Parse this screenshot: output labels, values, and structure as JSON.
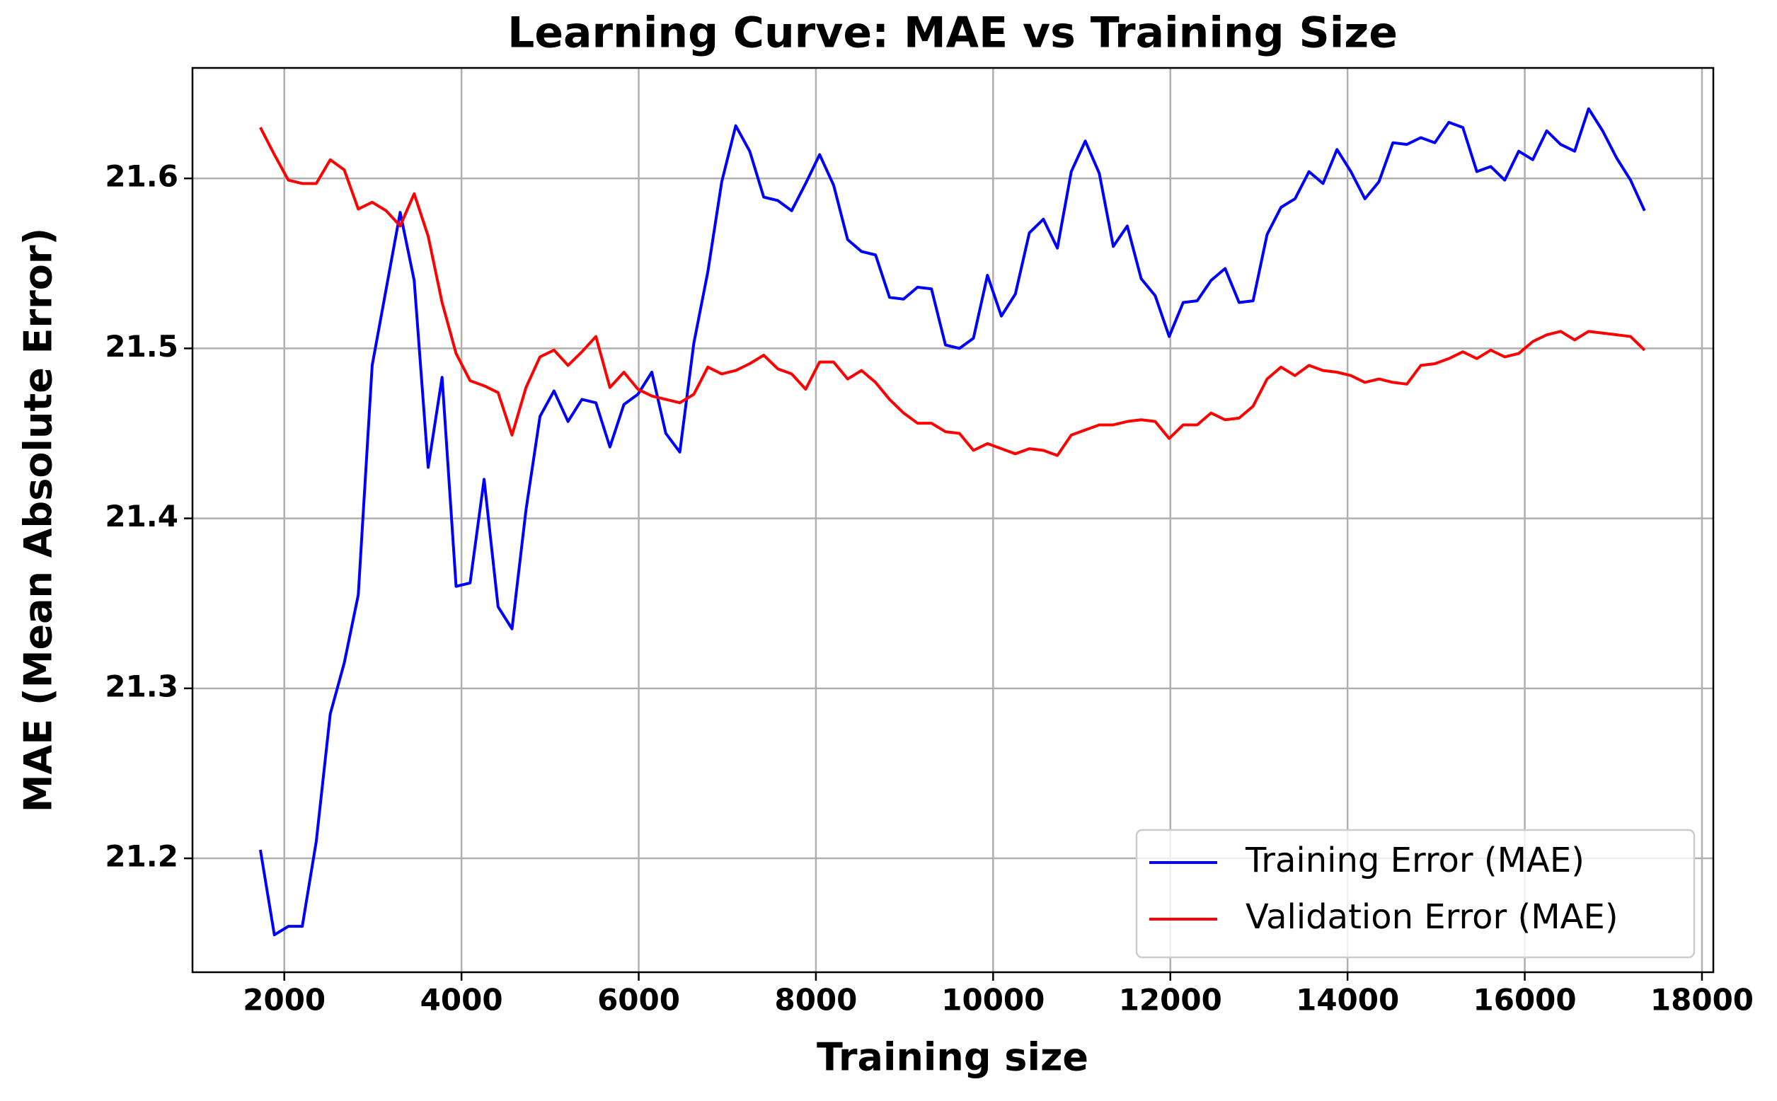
{
  "chart_data": {
    "type": "line",
    "title": "Learning Curve: MAE vs Training Size",
    "x_label": "Training size",
    "y_label": "MAE (Mean Absolute Error)",
    "x": [
      1730,
      1888,
      2046,
      2203,
      2361,
      2519,
      2677,
      2835,
      2992,
      3150,
      3308,
      3466,
      3624,
      3781,
      3939,
      4097,
      4255,
      4413,
      4570,
      4728,
      4886,
      5044,
      5202,
      5359,
      5517,
      5675,
      5833,
      5991,
      6148,
      6306,
      6464,
      6622,
      6780,
      6937,
      7095,
      7253,
      7411,
      7569,
      7726,
      7884,
      8042,
      8200,
      8358,
      8515,
      8673,
      8831,
      8989,
      9147,
      9304,
      9462,
      9620,
      9778,
      9936,
      10093,
      10251,
      10409,
      10567,
      10725,
      10882,
      11040,
      11198,
      11356,
      11514,
      11671,
      11829,
      11987,
      12145,
      12303,
      12460,
      12618,
      12776,
      12934,
      13092,
      13249,
      13407,
      13565,
      13723,
      13881,
      14038,
      14196,
      14354,
      14512,
      14670,
      14827,
      14985,
      15143,
      15301,
      15459,
      15616,
      15774,
      15932,
      16090,
      16248,
      16405,
      16563,
      16721,
      16879,
      17037,
      17194,
      17352
    ],
    "series": [
      {
        "name": "Training Error (MAE)",
        "color": "#0000ff",
        "values": [
          21.205,
          21.155,
          21.16,
          21.16,
          21.21,
          21.285,
          21.315,
          21.355,
          21.49,
          21.535,
          21.58,
          21.54,
          21.43,
          21.483,
          21.36,
          21.362,
          21.423,
          21.348,
          21.335,
          21.405,
          21.46,
          21.475,
          21.457,
          21.47,
          21.468,
          21.442,
          21.467,
          21.473,
          21.486,
          21.45,
          21.439,
          21.503,
          21.545,
          21.598,
          21.631,
          21.616,
          21.589,
          21.587,
          21.581,
          21.597,
          21.614,
          21.596,
          21.564,
          21.557,
          21.555,
          21.53,
          21.529,
          21.536,
          21.535,
          21.502,
          21.5,
          21.506,
          21.543,
          21.519,
          21.532,
          21.568,
          21.576,
          21.559,
          21.604,
          21.622,
          21.603,
          21.56,
          21.572,
          21.541,
          21.531,
          21.507,
          21.527,
          21.528,
          21.54,
          21.547,
          21.527,
          21.528,
          21.567,
          21.583,
          21.588,
          21.604,
          21.597,
          21.617,
          21.604,
          21.588,
          21.598,
          21.621,
          21.62,
          21.624,
          21.621,
          21.633,
          21.63,
          21.604,
          21.607,
          21.599,
          21.616,
          21.611,
          21.628,
          21.62,
          21.616,
          21.641,
          21.628,
          21.612,
          21.599,
          21.581
        ]
      },
      {
        "name": "Validation Error (MAE)",
        "color": "#ff0000",
        "values": [
          21.63,
          21.614,
          21.599,
          21.597,
          21.597,
          21.611,
          21.605,
          21.582,
          21.586,
          21.581,
          21.572,
          21.591,
          21.566,
          21.527,
          21.497,
          21.481,
          21.478,
          21.474,
          21.449,
          21.477,
          21.495,
          21.499,
          21.49,
          21.498,
          21.507,
          21.477,
          21.486,
          21.476,
          21.472,
          21.47,
          21.468,
          21.473,
          21.489,
          21.485,
          21.487,
          21.491,
          21.496,
          21.488,
          21.485,
          21.476,
          21.492,
          21.492,
          21.482,
          21.487,
          21.48,
          21.47,
          21.462,
          21.456,
          21.456,
          21.451,
          21.45,
          21.44,
          21.444,
          21.441,
          21.438,
          21.441,
          21.44,
          21.437,
          21.449,
          21.452,
          21.455,
          21.455,
          21.457,
          21.458,
          21.457,
          21.447,
          21.455,
          21.455,
          21.462,
          21.458,
          21.459,
          21.466,
          21.482,
          21.489,
          21.484,
          21.49,
          21.487,
          21.486,
          21.484,
          21.48,
          21.482,
          21.48,
          21.479,
          21.49,
          21.491,
          21.494,
          21.498,
          21.494,
          21.499,
          21.495,
          21.497,
          21.504,
          21.508,
          21.51,
          21.505,
          21.51,
          21.509,
          21.508,
          21.507,
          21.499
        ]
      }
    ],
    "xlim": [
      964,
      18128
    ],
    "ylim": [
      21.133,
      21.665
    ],
    "xticks": [
      2000,
      4000,
      6000,
      8000,
      10000,
      12000,
      14000,
      16000,
      18000
    ],
    "yticks": [
      21.2,
      21.3,
      21.4,
      21.5,
      21.6
    ],
    "grid": true,
    "legend": "lower right"
  }
}
